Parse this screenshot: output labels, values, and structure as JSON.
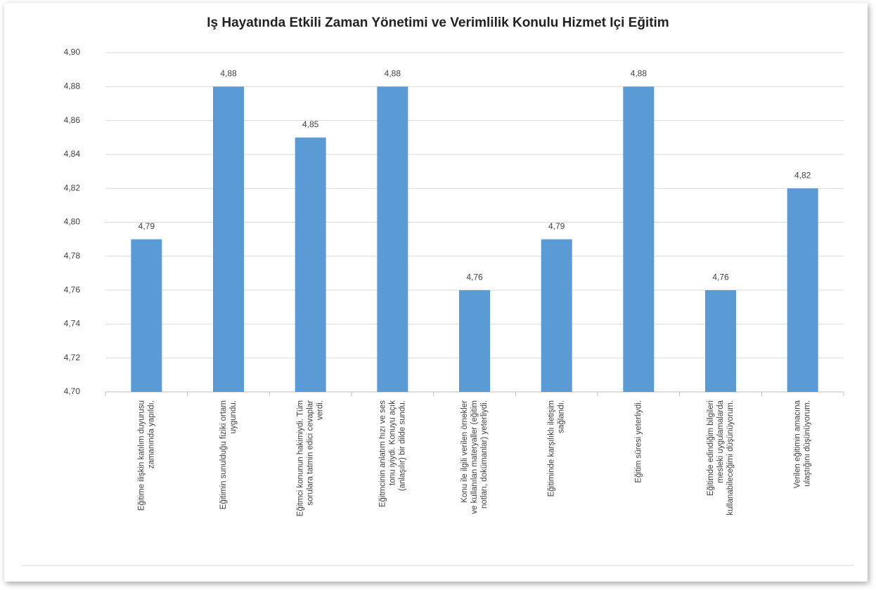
{
  "chart_data": {
    "type": "bar",
    "title": "Iş Hayatında Etkili Zaman Yönetimi ve Verimlilik Konulu Hizmet Içi Eğitim",
    "categories": [
      "Eğitime ilişkin katılım duyurusu zamanında yapıldı.",
      "Eğitimin sunulduğu fiziki ortam uygundu.",
      "Eğitmci konunun hakimiydi. Tüm sorulara tatmin edici cevaplar verdi.",
      "Eğitmcinin anlatım hızı ve ses tonu iyiydi. Konuyu açık (anlaşılır) bir dilde sundu.",
      "Konu ile ilgili verilen örnekler ve kullanılan materyaller (eğitim notları, dokümanlar) yeterliydi.",
      "Eğitiminde karşılıklı iletişim sağlandı.",
      "Eğitim süresi yeterliydi.",
      "Eğitimde edindiğim bilgileri mesleki uygulamalarda kullanabileceğimi düşünüyorum.",
      "Verilen eğitimin amacına ulaştığını düşünüyorum."
    ],
    "values": [
      4.79,
      4.88,
      4.85,
      4.88,
      4.76,
      4.79,
      4.88,
      4.76,
      4.82
    ],
    "value_labels": [
      "4,79",
      "4,88",
      "4,85",
      "4,88",
      "4,76",
      "4,79",
      "4,88",
      "4,76",
      "4,82"
    ],
    "color": "#5b9bd5",
    "ylim": [
      4.7,
      4.9
    ],
    "yticks": [
      {
        "value": 4.7,
        "label": "4,70"
      },
      {
        "value": 4.72,
        "label": "4,72"
      },
      {
        "value": 4.74,
        "label": "4,74"
      },
      {
        "value": 4.76,
        "label": "4,76"
      },
      {
        "value": 4.78,
        "label": "4,78"
      },
      {
        "value": 4.8,
        "label": "4,80"
      },
      {
        "value": 4.82,
        "label": "4,82"
      },
      {
        "value": 4.84,
        "label": "4,84"
      },
      {
        "value": 4.86,
        "label": "4,86"
      },
      {
        "value": 4.88,
        "label": "4,88"
      },
      {
        "value": 4.9,
        "label": "4,90"
      }
    ],
    "grid": true
  }
}
